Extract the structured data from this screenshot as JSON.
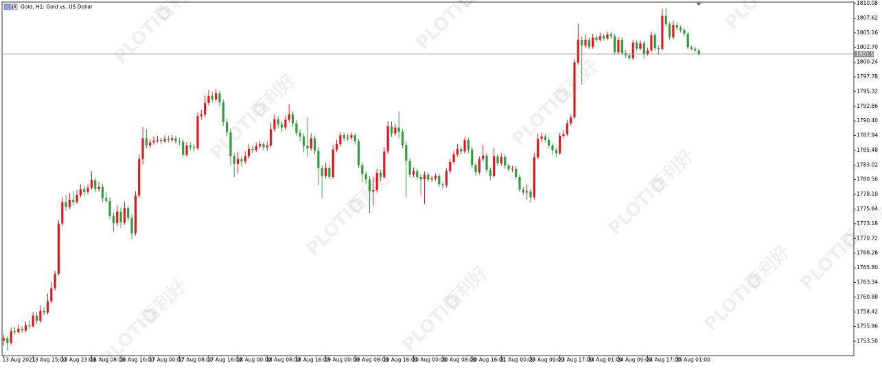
{
  "chart_data": {
    "type": "candlestick",
    "title": "Gold, H1:  Gold vs. US Dollar",
    "watermark": {
      "logo": "PLOTIO",
      "text": "百利好"
    },
    "up_color": "#e8161b",
    "down_color": "#2f9e3a",
    "last_price": 1801.59,
    "ylim": [
      1751.09,
      1810.31
    ],
    "yticks": [
      1810.08,
      1807.62,
      1805.16,
      {
        "value": 1802.7,
        "label": "1802.70"
      },
      1800.24,
      1797.78,
      1795.32,
      1792.86,
      {
        "value": 1790.4,
        "label": "1790.40"
      },
      1787.94,
      1785.48,
      1783.02,
      1780.56,
      {
        "value": 1778.1,
        "label": "1778.10"
      },
      1775.64,
      1773.18,
      1770.72,
      1768.26,
      {
        "value": 1765.8,
        "label": "1765.80"
      },
      1763.34,
      1760.88,
      1758.42,
      1755.96,
      {
        "value": 1753.5,
        "label": "1753.50"
      }
    ],
    "categories": [
      "13 Aug 2021",
      null,
      null,
      null,
      null,
      null,
      null,
      null,
      "13 Aug 15:00",
      null,
      null,
      null,
      null,
      null,
      null,
      null,
      "13 Aug 23:00",
      null,
      null,
      null,
      null,
      null,
      null,
      null,
      "16 Aug 08:00",
      null,
      null,
      null,
      null,
      null,
      null,
      null,
      "16 Aug 16:00",
      null,
      null,
      null,
      null,
      null,
      null,
      null,
      "17 Aug 00:00",
      null,
      null,
      null,
      null,
      null,
      null,
      null,
      "17 Aug 08:00",
      null,
      null,
      null,
      null,
      null,
      null,
      null,
      "17 Aug 16:00",
      null,
      null,
      null,
      null,
      null,
      null,
      null,
      "18 Aug 00:00",
      null,
      null,
      null,
      null,
      null,
      null,
      null,
      "18 Aug 08:00",
      null,
      null,
      null,
      null,
      null,
      null,
      null,
      "18 Aug 16:00",
      null,
      null,
      null,
      null,
      null,
      null,
      null,
      "19 Aug 00:00",
      null,
      null,
      null,
      null,
      null,
      null,
      null,
      "19 Aug 08:00",
      null,
      null,
      null,
      null,
      null,
      null,
      null,
      "19 Aug 16:00",
      null,
      null,
      null,
      null,
      null,
      null,
      null,
      "20 Aug 00:00",
      null,
      null,
      null,
      null,
      null,
      null,
      null,
      "20 Aug 08:00",
      null,
      null,
      null,
      null,
      null,
      null,
      null,
      "20 Aug 16:00",
      null,
      null,
      null,
      null,
      null,
      null,
      null,
      "21 Aug 00:00",
      null,
      null,
      null,
      null,
      null,
      null,
      null,
      "23 Aug 09:00",
      null,
      null,
      null,
      null,
      null,
      null,
      null,
      "23 Aug 17:00",
      null,
      null,
      null,
      null,
      null,
      null,
      null,
      "24 Aug 01:00",
      null,
      null,
      null,
      null,
      null,
      null,
      null,
      "24 Aug 09:00",
      null,
      null,
      null,
      null,
      null,
      null,
      null,
      "24 Aug 17:00",
      null,
      null,
      null,
      null,
      null,
      null,
      null,
      "25 Aug 01:00",
      null,
      null,
      null,
      null,
      null,
      null
    ],
    "ohlc": [
      [
        1753.6,
        1754.6,
        1752.8,
        1754.0
      ],
      [
        1754.0,
        1754.3,
        1751.9,
        1753.2
      ],
      [
        1753.2,
        1755.8,
        1752.9,
        1755.2
      ],
      [
        1755.2,
        1755.9,
        1754.6,
        1755.0
      ],
      [
        1755.0,
        1756.3,
        1754.8,
        1755.6
      ],
      [
        1755.6,
        1756.0,
        1754.9,
        1755.3
      ],
      [
        1755.3,
        1756.8,
        1755.0,
        1756.2
      ],
      [
        1756.2,
        1757.0,
        1755.6,
        1756.0
      ],
      [
        1756.0,
        1758.4,
        1755.8,
        1757.8
      ],
      [
        1757.8,
        1758.3,
        1756.4,
        1756.9
      ],
      [
        1756.9,
        1759.5,
        1756.6,
        1758.6
      ],
      [
        1758.6,
        1759.2,
        1757.8,
        1758.3
      ],
      [
        1758.3,
        1761.5,
        1758.0,
        1760.2
      ],
      [
        1760.2,
        1763.4,
        1759.8,
        1762.4
      ],
      [
        1762.4,
        1765.3,
        1762.0,
        1764.8
      ],
      [
        1764.8,
        1773.8,
        1764.5,
        1773.2
      ],
      [
        1773.2,
        1777.6,
        1772.8,
        1776.8
      ],
      [
        1776.8,
        1778.0,
        1775.4,
        1776.0
      ],
      [
        1776.0,
        1778.3,
        1775.6,
        1777.2
      ],
      [
        1777.2,
        1778.6,
        1776.2,
        1776.8
      ],
      [
        1776.8,
        1778.8,
        1776.5,
        1778.0
      ],
      [
        1778.0,
        1779.8,
        1777.6,
        1779.0
      ],
      [
        1779.0,
        1779.6,
        1777.8,
        1778.5
      ],
      [
        1778.5,
        1779.8,
        1778.1,
        1779.2
      ],
      [
        1779.2,
        1782.0,
        1778.9,
        1780.5
      ],
      [
        1780.5,
        1780.9,
        1778.4,
        1779.0
      ],
      [
        1779.0,
        1780.2,
        1778.6,
        1779.4
      ],
      [
        1779.4,
        1779.8,
        1776.8,
        1777.5
      ],
      [
        1777.5,
        1778.4,
        1776.6,
        1777.0
      ],
      [
        1777.0,
        1777.6,
        1773.9,
        1774.5
      ],
      [
        1774.5,
        1775.0,
        1771.9,
        1773.3
      ],
      [
        1773.3,
        1776.3,
        1772.8,
        1775.2
      ],
      [
        1775.2,
        1775.9,
        1772.5,
        1773.4
      ],
      [
        1773.4,
        1776.9,
        1773.0,
        1775.8
      ],
      [
        1775.8,
        1776.2,
        1773.6,
        1774.2
      ],
      [
        1774.2,
        1774.8,
        1770.6,
        1771.6
      ],
      [
        1771.6,
        1778.6,
        1771.2,
        1777.9
      ],
      [
        1777.9,
        1784.8,
        1777.5,
        1784.0
      ],
      [
        1784.0,
        1789.4,
        1783.1,
        1787.5
      ],
      [
        1787.5,
        1789.0,
        1785.8,
        1786.3
      ],
      [
        1786.3,
        1787.4,
        1785.9,
        1786.8
      ],
      [
        1786.8,
        1787.8,
        1786.4,
        1787.1
      ],
      [
        1787.1,
        1787.9,
        1786.7,
        1787.2
      ],
      [
        1787.2,
        1787.6,
        1786.5,
        1787.0
      ],
      [
        1787.0,
        1788.0,
        1786.7,
        1787.4
      ],
      [
        1787.4,
        1787.9,
        1786.8,
        1787.2
      ],
      [
        1787.2,
        1788.1,
        1786.9,
        1787.5
      ],
      [
        1787.5,
        1787.9,
        1786.5,
        1787.0
      ],
      [
        1787.0,
        1787.6,
        1786.3,
        1786.9
      ],
      [
        1786.9,
        1787.3,
        1784.3,
        1784.7
      ],
      [
        1784.7,
        1786.9,
        1784.4,
        1786.3
      ],
      [
        1786.3,
        1786.8,
        1785.5,
        1786.0
      ],
      [
        1786.0,
        1786.5,
        1785.3,
        1785.8
      ],
      [
        1785.8,
        1791.8,
        1785.5,
        1791.2
      ],
      [
        1791.2,
        1792.3,
        1790.6,
        1791.5
      ],
      [
        1791.5,
        1794.7,
        1791.0,
        1793.4
      ],
      [
        1793.4,
        1795.6,
        1793.0,
        1794.6
      ],
      [
        1794.6,
        1795.3,
        1793.5,
        1794.0
      ],
      [
        1794.0,
        1795.7,
        1793.7,
        1795.0
      ],
      [
        1795.0,
        1795.5,
        1792.8,
        1793.5
      ],
      [
        1793.5,
        1794.0,
        1789.6,
        1790.2
      ],
      [
        1790.2,
        1790.8,
        1787.8,
        1788.5
      ],
      [
        1788.5,
        1789.0,
        1782.9,
        1784.5
      ],
      [
        1784.5,
        1785.0,
        1781.0,
        1783.2
      ],
      [
        1783.2,
        1785.2,
        1781.6,
        1784.0
      ],
      [
        1784.0,
        1784.6,
        1782.8,
        1783.6
      ],
      [
        1783.6,
        1785.4,
        1783.2,
        1784.5
      ],
      [
        1784.5,
        1786.5,
        1784.1,
        1785.7
      ],
      [
        1785.7,
        1786.3,
        1785.0,
        1785.5
      ],
      [
        1785.5,
        1786.8,
        1785.2,
        1786.2
      ],
      [
        1786.2,
        1787.0,
        1785.8,
        1786.5
      ],
      [
        1786.5,
        1786.9,
        1785.5,
        1786.0
      ],
      [
        1786.0,
        1787.0,
        1785.4,
        1786.3
      ],
      [
        1786.3,
        1790.1,
        1786.0,
        1789.0
      ],
      [
        1789.0,
        1791.5,
        1788.6,
        1790.7
      ],
      [
        1790.7,
        1791.2,
        1789.2,
        1789.8
      ],
      [
        1789.8,
        1790.3,
        1788.6,
        1789.3
      ],
      [
        1789.3,
        1791.3,
        1788.9,
        1790.6
      ],
      [
        1790.6,
        1793.2,
        1790.2,
        1791.5
      ],
      [
        1791.5,
        1792.0,
        1789.4,
        1790.0
      ],
      [
        1790.0,
        1790.6,
        1787.9,
        1788.4
      ],
      [
        1788.4,
        1789.0,
        1787.0,
        1787.8
      ],
      [
        1787.8,
        1788.3,
        1785.2,
        1786.2
      ],
      [
        1786.2,
        1791.0,
        1784.4,
        1785.8
      ],
      [
        1785.8,
        1788.3,
        1785.4,
        1787.5
      ],
      [
        1787.5,
        1788.0,
        1784.8,
        1785.4
      ],
      [
        1785.4,
        1786.0,
        1779.6,
        1782.5
      ],
      [
        1782.5,
        1783.0,
        1777.5,
        1781.2
      ],
      [
        1781.2,
        1783.4,
        1780.8,
        1782.5
      ],
      [
        1782.5,
        1783.0,
        1780.6,
        1781.0
      ],
      [
        1781.0,
        1786.4,
        1780.7,
        1785.6
      ],
      [
        1785.6,
        1787.2,
        1785.2,
        1786.5
      ],
      [
        1786.5,
        1788.6,
        1786.1,
        1788.0
      ],
      [
        1788.0,
        1788.4,
        1787.0,
        1787.5
      ],
      [
        1787.5,
        1788.2,
        1787.1,
        1787.6
      ],
      [
        1787.6,
        1788.5,
        1787.2,
        1788.0
      ],
      [
        1788.0,
        1788.3,
        1786.4,
        1787.0
      ],
      [
        1787.0,
        1787.4,
        1782.5,
        1783.0
      ],
      [
        1783.0,
        1783.5,
        1780.2,
        1781.5
      ],
      [
        1781.5,
        1782.0,
        1779.8,
        1780.6
      ],
      [
        1780.6,
        1781.2,
        1775.0,
        1778.6
      ],
      [
        1778.6,
        1781.0,
        1776.2,
        1778.8
      ],
      [
        1778.8,
        1782.4,
        1778.4,
        1781.7
      ],
      [
        1781.7,
        1782.2,
        1780.3,
        1781.0
      ],
      [
        1781.0,
        1786.0,
        1780.7,
        1785.3
      ],
      [
        1785.3,
        1790.4,
        1784.9,
        1789.5
      ],
      [
        1789.5,
        1790.3,
        1787.7,
        1788.3
      ],
      [
        1788.3,
        1790.0,
        1787.9,
        1789.3
      ],
      [
        1789.3,
        1792.0,
        1787.5,
        1788.6
      ],
      [
        1788.6,
        1789.0,
        1785.8,
        1786.4
      ],
      [
        1786.4,
        1786.9,
        1777.6,
        1783.7
      ],
      [
        1783.7,
        1784.2,
        1780.9,
        1781.4
      ],
      [
        1781.4,
        1782.6,
        1781.0,
        1782.0
      ],
      [
        1782.0,
        1782.4,
        1780.6,
        1781.0
      ],
      [
        1781.0,
        1781.5,
        1778.0,
        1780.6
      ],
      [
        1780.6,
        1781.9,
        1776.5,
        1781.4
      ],
      [
        1781.4,
        1781.8,
        1780.2,
        1780.6
      ],
      [
        1780.6,
        1781.2,
        1780.2,
        1780.8
      ],
      [
        1780.8,
        1781.6,
        1780.4,
        1781.2
      ],
      [
        1781.2,
        1781.6,
        1779.4,
        1779.8
      ],
      [
        1779.8,
        1780.2,
        1779.0,
        1779.6
      ],
      [
        1779.6,
        1782.5,
        1779.2,
        1782.0
      ],
      [
        1782.0,
        1784.0,
        1781.6,
        1783.5
      ],
      [
        1783.5,
        1785.4,
        1783.1,
        1784.8
      ],
      [
        1784.8,
        1786.5,
        1784.4,
        1785.7
      ],
      [
        1785.7,
        1786.2,
        1784.8,
        1785.3
      ],
      [
        1785.3,
        1787.7,
        1784.9,
        1787.2
      ],
      [
        1787.2,
        1787.6,
        1785.0,
        1785.6
      ],
      [
        1785.6,
        1786.1,
        1782.4,
        1783.0
      ],
      [
        1783.0,
        1783.4,
        1781.2,
        1781.8
      ],
      [
        1781.8,
        1784.5,
        1781.4,
        1784.0
      ],
      [
        1784.0,
        1786.4,
        1783.6,
        1784.6
      ],
      [
        1784.6,
        1785.0,
        1781.7,
        1782.2
      ],
      [
        1782.2,
        1782.6,
        1780.5,
        1781.2
      ],
      [
        1781.2,
        1785.8,
        1780.9,
        1784.5
      ],
      [
        1784.5,
        1784.9,
        1782.8,
        1783.3
      ],
      [
        1783.3,
        1785.0,
        1782.9,
        1784.4
      ],
      [
        1784.4,
        1784.8,
        1782.4,
        1782.9
      ],
      [
        1782.9,
        1783.3,
        1781.9,
        1782.3
      ],
      [
        1782.3,
        1782.9,
        1781.8,
        1782.4
      ],
      [
        1782.4,
        1782.8,
        1780.6,
        1781.0
      ],
      [
        1781.0,
        1781.4,
        1778.5,
        1778.9
      ],
      [
        1778.9,
        1779.3,
        1778.0,
        1778.4
      ],
      [
        1778.4,
        1779.8,
        1777.2,
        1778.6
      ],
      [
        1778.6,
        1779.0,
        1776.6,
        1777.6
      ],
      [
        1777.6,
        1785.0,
        1777.2,
        1784.3
      ],
      [
        1784.3,
        1788.3,
        1784.0,
        1787.4
      ],
      [
        1787.4,
        1788.5,
        1786.9,
        1787.8
      ],
      [
        1787.8,
        1788.2,
        1786.8,
        1787.2
      ],
      [
        1787.2,
        1787.6,
        1785.8,
        1786.3
      ],
      [
        1786.3,
        1786.7,
        1784.8,
        1785.5
      ],
      [
        1785.5,
        1785.9,
        1784.3,
        1785.0
      ],
      [
        1785.0,
        1788.4,
        1784.7,
        1787.9
      ],
      [
        1787.9,
        1788.9,
        1787.5,
        1788.2
      ],
      [
        1788.2,
        1790.6,
        1787.9,
        1790.0
      ],
      [
        1790.0,
        1791.5,
        1789.6,
        1791.0
      ],
      [
        1791.0,
        1800.8,
        1790.7,
        1800.2
      ],
      [
        1800.2,
        1806.7,
        1799.8,
        1804.0
      ],
      [
        1804.0,
        1804.6,
        1796.5,
        1803.0
      ],
      [
        1803.0,
        1804.9,
        1802.6,
        1804.0
      ],
      [
        1804.0,
        1804.4,
        1802.4,
        1802.8
      ],
      [
        1802.8,
        1805.0,
        1802.5,
        1804.4
      ],
      [
        1804.4,
        1804.8,
        1803.6,
        1804.0
      ],
      [
        1804.0,
        1805.2,
        1803.7,
        1804.6
      ],
      [
        1804.6,
        1805.0,
        1803.8,
        1804.2
      ],
      [
        1804.2,
        1805.4,
        1803.9,
        1804.9
      ],
      [
        1804.9,
        1805.3,
        1804.2,
        1804.6
      ],
      [
        1804.6,
        1805.0,
        1801.5,
        1801.9
      ],
      [
        1801.9,
        1804.5,
        1801.6,
        1804.0
      ],
      [
        1804.0,
        1804.4,
        1801.4,
        1801.8
      ],
      [
        1801.8,
        1802.3,
        1800.9,
        1801.4
      ],
      [
        1801.4,
        1801.8,
        1800.5,
        1800.9
      ],
      [
        1800.9,
        1804.0,
        1800.6,
        1803.5
      ],
      [
        1803.5,
        1803.9,
        1802.1,
        1802.5
      ],
      [
        1802.5,
        1803.9,
        1802.2,
        1803.4
      ],
      [
        1803.4,
        1803.8,
        1800.8,
        1801.6
      ],
      [
        1801.6,
        1802.7,
        1801.3,
        1802.2
      ],
      [
        1802.2,
        1805.4,
        1801.9,
        1804.8
      ],
      [
        1804.8,
        1805.2,
        1802.2,
        1802.6
      ],
      [
        1802.6,
        1803.0,
        1801.5,
        1802.5
      ],
      [
        1802.5,
        1809.2,
        1802.2,
        1808.0
      ],
      [
        1808.0,
        1809.3,
        1806.2,
        1806.6
      ],
      [
        1806.6,
        1807.0,
        1804.0,
        1804.4
      ],
      [
        1804.4,
        1807.2,
        1804.1,
        1806.5
      ],
      [
        1806.5,
        1806.9,
        1805.6,
        1806.0
      ],
      [
        1806.0,
        1806.4,
        1805.2,
        1805.6
      ],
      [
        1805.6,
        1806.0,
        1804.6,
        1805.0
      ],
      [
        1805.0,
        1805.4,
        1802.3,
        1802.7
      ],
      [
        1802.7,
        1803.0,
        1802.2,
        1802.5
      ],
      [
        1802.5,
        1802.8,
        1801.9,
        1802.2
      ],
      [
        1802.2,
        1802.5,
        1801.3,
        1801.6
      ]
    ]
  }
}
